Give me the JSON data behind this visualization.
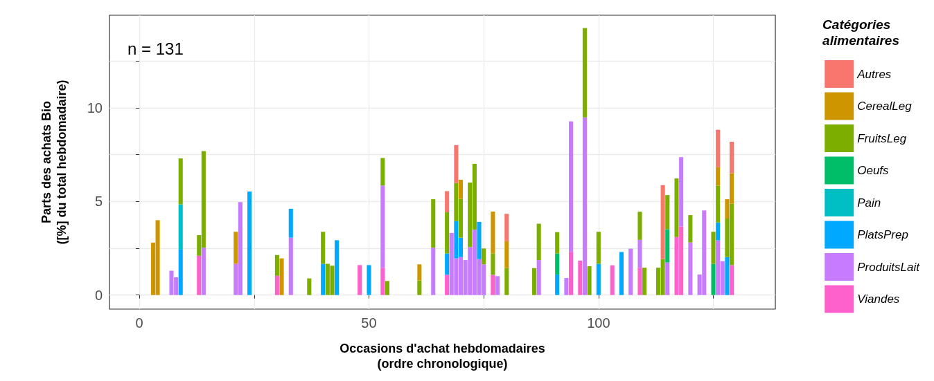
{
  "chart_data": {
    "type": "bar",
    "stacked": true,
    "xlabel": "Occasions d'achat hebdomadaires\n(ordre chronologique)",
    "ylabel": "Parts des achats Bio\n([%] du total hebdomadaire)",
    "legend_title": "Catégories\nalimentaires",
    "annotations": [
      "n = 131"
    ],
    "legend": "right",
    "grid": true,
    "xlim": [
      -6.5,
      138.5
    ],
    "xticks": [
      0,
      {
        "value": 25,
        "label": null
      },
      50,
      {
        "value": 75,
        "label": null
      },
      100,
      {
        "value": 125,
        "label": null
      }
    ],
    "ylim": [
      -0.75,
      14.95
    ],
    "yticks": [
      0,
      {
        "value": 2.5,
        "label": null
      },
      5,
      {
        "value": 7.5,
        "label": null
      },
      10,
      {
        "value": 12.5,
        "label": null
      }
    ],
    "x": [
      3,
      4,
      7,
      8,
      9,
      13,
      14,
      21,
      22,
      24,
      30,
      31,
      33,
      37,
      40,
      41,
      42,
      43,
      48,
      50,
      53,
      54,
      61,
      64,
      67,
      68,
      69,
      70,
      71,
      72,
      73,
      74,
      75,
      77,
      78,
      80,
      86,
      87,
      91,
      93,
      94,
      96,
      97,
      98,
      100,
      103,
      105,
      107,
      109,
      110,
      113,
      114,
      115,
      117,
      118,
      120,
      122,
      123,
      125,
      126,
      127,
      128,
      129
    ],
    "series": [
      {
        "name": "Viandes",
        "color": "#ff61cc",
        "values": [
          null,
          null,
          null,
          null,
          null,
          2.1,
          null,
          null,
          null,
          null,
          1.03,
          null,
          null,
          null,
          null,
          null,
          null,
          null,
          1.6,
          null,
          1.46,
          null,
          null,
          null,
          1.08,
          null,
          null,
          null,
          null,
          null,
          null,
          null,
          null,
          1.08,
          null,
          null,
          null,
          null,
          null,
          null,
          2.31,
          1.84,
          null,
          null,
          null,
          1.59,
          null,
          null,
          1.46,
          null,
          null,
          null,
          null,
          3.1,
          3.67,
          null,
          null,
          null,
          null,
          null,
          null,
          null,
          1.6
        ]
      },
      {
        "name": "ProduitsLait",
        "color": "#c77cff",
        "values": [
          null,
          null,
          1.3,
          0.95,
          null,
          null,
          2.53,
          1.67,
          4.97,
          null,
          null,
          null,
          3.07,
          null,
          null,
          null,
          null,
          null,
          null,
          null,
          4.39,
          null,
          null,
          2.53,
          null,
          3.32,
          1.96,
          2.03,
          1.87,
          2.56,
          3.49,
          1.92,
          1.64,
          null,
          1.01,
          null,
          null,
          1.87,
          null,
          0.91,
          6.97,
          null,
          9.49,
          null,
          null,
          null,
          null,
          2.48,
          1.49,
          null,
          null,
          null,
          1.74,
          null,
          3.7,
          2.81,
          1.1,
          4.52,
          null,
          2.92,
          1.81,
          null,
          null
        ]
      },
      {
        "name": "PlatsPrep",
        "color": "#00a9ff",
        "values": [
          null,
          null,
          null,
          null,
          2.43,
          null,
          null,
          null,
          null,
          5.53,
          null,
          null,
          1.54,
          null,
          1.67,
          null,
          null,
          2.93,
          null,
          1.6,
          null,
          null,
          null,
          null,
          1.14,
          null,
          1.99,
          1.04,
          null,
          null,
          null,
          1.99,
          null,
          null,
          null,
          null,
          null,
          null,
          1.1,
          null,
          null,
          null,
          null,
          null,
          1.67,
          null,
          2.3,
          null,
          null,
          null,
          null,
          null,
          null,
          null,
          null,
          null,
          null,
          null,
          null,
          0.96,
          null,
          2.03,
          null
        ]
      },
      {
        "name": "Pain",
        "color": "#00bfc4",
        "values": [
          null,
          null,
          null,
          null,
          2.42,
          null,
          null,
          null,
          null,
          null,
          null,
          null,
          null,
          null,
          null,
          null,
          null,
          null,
          null,
          null,
          null,
          null,
          null,
          null,
          null,
          null,
          null,
          null,
          null,
          null,
          null,
          null,
          null,
          null,
          null,
          null,
          null,
          null,
          null,
          null,
          null,
          null,
          null,
          null,
          null,
          null,
          null,
          null,
          null,
          null,
          null,
          null,
          null,
          null,
          null,
          null,
          null,
          null,
          null,
          null,
          null,
          null,
          null
        ]
      },
      {
        "name": "Oeufs",
        "color": "#00be67",
        "values": [
          null,
          null,
          null,
          null,
          null,
          null,
          null,
          null,
          null,
          null,
          null,
          null,
          null,
          null,
          null,
          null,
          null,
          null,
          null,
          null,
          null,
          null,
          null,
          null,
          null,
          null,
          null,
          null,
          null,
          null,
          null,
          null,
          null,
          null,
          null,
          null,
          null,
          null,
          1.12,
          null,
          null,
          null,
          null,
          null,
          null,
          null,
          null,
          null,
          null,
          null,
          null,
          null,
          1.78,
          null,
          null,
          null,
          null,
          null,
          1.67,
          null,
          null,
          null,
          null
        ]
      },
      {
        "name": "FruitsLeg",
        "color": "#7cae00",
        "values": [
          null,
          null,
          null,
          null,
          2.45,
          1.1,
          5.16,
          null,
          null,
          null,
          1.11,
          null,
          null,
          0.89,
          1.71,
          1.67,
          1.57,
          null,
          null,
          null,
          1.47,
          0.75,
          0.78,
          2.59,
          2.2,
          null,
          2.04,
          2.07,
          null,
          3.45,
          3.52,
          null,
          0.85,
          1.14,
          null,
          1.44,
          1.44,
          1.94,
          1.14,
          null,
          null,
          null,
          4.78,
          1.54,
          1.71,
          null,
          null,
          null,
          1.5,
          1.46,
          1.46,
          1.92,
          1.82,
          3.13,
          null,
          1.46,
          null,
          null,
          1.71,
          1.96,
          null,
          2.06,
          3.28
        ]
      },
      {
        "name": "CerealLeg",
        "color": "#cd9600",
        "values": [
          2.8,
          4.0,
          null,
          null,
          null,
          null,
          null,
          1.71,
          null,
          null,
          null,
          1.96,
          null,
          null,
          null,
          null,
          null,
          null,
          null,
          null,
          null,
          null,
          0.86,
          null,
          null,
          null,
          null,
          1.02,
          null,
          null,
          null,
          null,
          null,
          2.24,
          null,
          1.44,
          null,
          null,
          null,
          null,
          null,
          null,
          null,
          null,
          null,
          null,
          null,
          null,
          null,
          null,
          null,
          null,
          null,
          null,
          null,
          null,
          null,
          null,
          null,
          0.99,
          null,
          1.03,
          1.63
        ]
      },
      {
        "name": "Autres",
        "color": "#f8766d",
        "values": [
          null,
          null,
          null,
          null,
          null,
          null,
          null,
          null,
          null,
          null,
          null,
          null,
          null,
          null,
          null,
          null,
          null,
          null,
          null,
          null,
          null,
          null,
          null,
          null,
          1.13,
          null,
          2.02,
          null,
          null,
          null,
          null,
          null,
          null,
          null,
          null,
          1.46,
          null,
          null,
          null,
          null,
          null,
          null,
          null,
          null,
          null,
          null,
          null,
          null,
          null,
          null,
          null,
          3.95,
          null,
          null,
          null,
          null,
          null,
          null,
          null,
          2.0,
          null,
          null,
          1.68
        ]
      }
    ]
  }
}
